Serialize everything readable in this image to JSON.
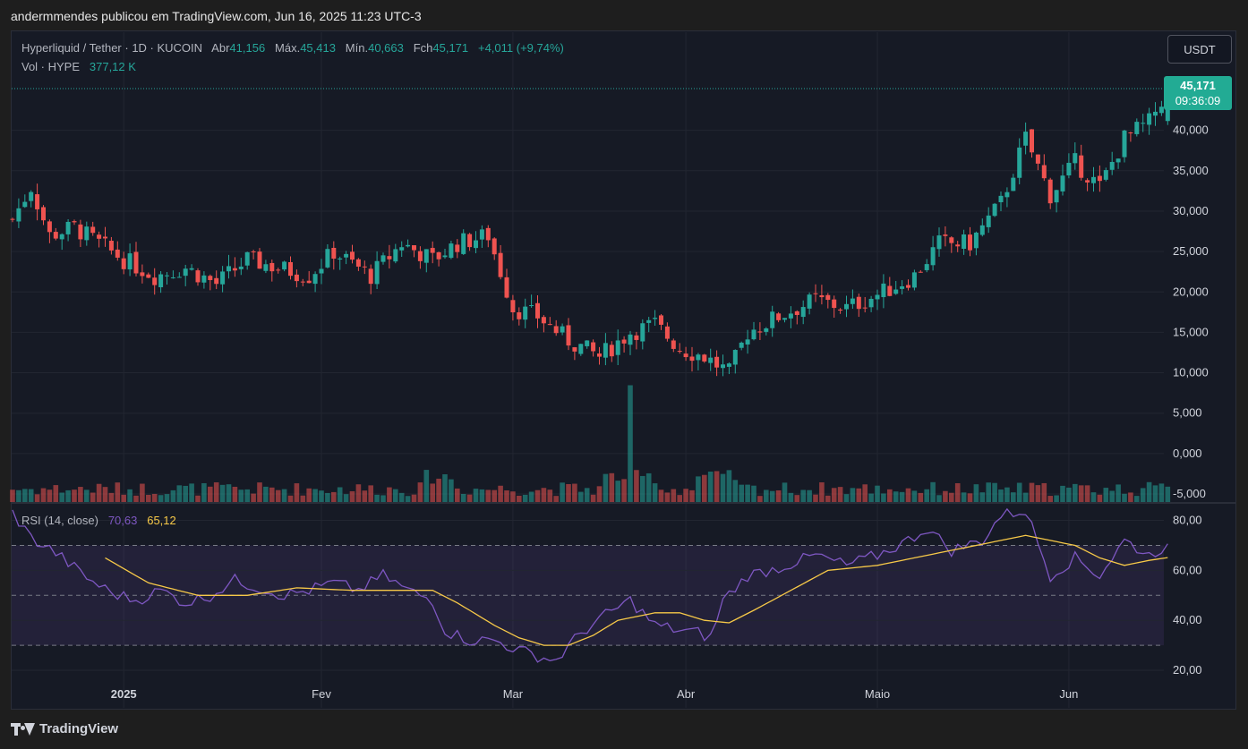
{
  "header": {
    "published": "andermmendes publicou em TradingView.com, Jun 16, 2025 11:23 UTC-3"
  },
  "legend": {
    "symbol": "Hyperliquid / Tether · 1D · KUCOIN",
    "open_label": "Abr",
    "open": "41,156",
    "high_label": "Máx.",
    "high": "45,413",
    "low_label": "Mín.",
    "low": "40,663",
    "close_label": "Fch",
    "close": "45,171",
    "change": "+4,011 (+9,74%)",
    "vol_label": "Vol · HYPE",
    "vol": "377,12 K",
    "rsi_label": "RSI (14, close)",
    "rsi": "70,63",
    "rsi_ma": "65,12"
  },
  "currency_button": "USDT",
  "last_price": {
    "price": "45,171",
    "countdown": "09:36:09"
  },
  "footer": {
    "brand": "TradingView"
  },
  "colors": {
    "up": "#26a69a",
    "down": "#ef5350",
    "rsi": "#7e57c2",
    "rsi_ma": "#f7c948",
    "background": "#161a25"
  },
  "chart_data": [
    {
      "type": "candlestick",
      "title": "Hyperliquid / Tether",
      "price_axis_ticks": [
        "45,171",
        "40,000",
        "35,000",
        "30,000",
        "25,000",
        "20,000",
        "15,000",
        "10,000",
        "5,000",
        "0,000",
        "-5,000"
      ],
      "price_axis_values": [
        40,
        35,
        30,
        25,
        20,
        15,
        10,
        5,
        0,
        -5
      ],
      "ylim": [
        -5,
        45.5
      ],
      "x_ticks": [
        "2025",
        "Fev",
        "Mar",
        "Abr",
        "Maio",
        "Jun"
      ],
      "x_tick_days": [
        18,
        50,
        81,
        109,
        140,
        171
      ],
      "day_range": [
        0,
        187
      ],
      "anchors_close": [
        [
          0,
          29
        ],
        [
          3,
          33
        ],
        [
          6,
          27
        ],
        [
          10,
          28
        ],
        [
          14,
          26
        ],
        [
          18,
          24
        ],
        [
          23,
          22
        ],
        [
          28,
          23
        ],
        [
          33,
          21
        ],
        [
          38,
          24
        ],
        [
          43,
          23
        ],
        [
          48,
          22
        ],
        [
          52,
          25
        ],
        [
          58,
          22
        ],
        [
          63,
          26
        ],
        [
          68,
          24
        ],
        [
          72,
          26
        ],
        [
          77,
          27
        ],
        [
          81,
          18
        ],
        [
          85,
          17
        ],
        [
          90,
          14
        ],
        [
          95,
          12
        ],
        [
          100,
          15
        ],
        [
          104,
          16
        ],
        [
          108,
          13
        ],
        [
          112,
          12
        ],
        [
          116,
          10
        ],
        [
          119,
          15
        ],
        [
          124,
          17
        ],
        [
          130,
          19
        ],
        [
          135,
          18
        ],
        [
          141,
          20
        ],
        [
          146,
          22
        ],
        [
          150,
          26
        ],
        [
          155,
          26
        ],
        [
          160,
          31
        ],
        [
          164,
          39
        ],
        [
          168,
          32
        ],
        [
          172,
          36
        ],
        [
          176,
          33
        ],
        [
          180,
          39
        ],
        [
          184,
          41
        ],
        [
          187,
          45.171
        ]
      ],
      "last": {
        "open": 41.156,
        "high": 45.413,
        "low": 40.663,
        "close": 45.171
      }
    },
    {
      "type": "bar",
      "title": "Vol · HYPE",
      "max_spike_day": 100
    },
    {
      "type": "line",
      "title": "RSI (14, close)",
      "ylim": [
        15,
        87
      ],
      "axis_ticks": [
        "80,00",
        "60,00",
        "40,00",
        "20,00"
      ],
      "axis_values": [
        80,
        60,
        40,
        20
      ],
      "bands": [
        30,
        50,
        70
      ],
      "rsi_anchors": [
        [
          0,
          83
        ],
        [
          3,
          73
        ],
        [
          7,
          67
        ],
        [
          12,
          57
        ],
        [
          16,
          51
        ],
        [
          20,
          48
        ],
        [
          24,
          52
        ],
        [
          28,
          47
        ],
        [
          32,
          50
        ],
        [
          36,
          56
        ],
        [
          40,
          53
        ],
        [
          44,
          50
        ],
        [
          48,
          52
        ],
        [
          52,
          55
        ],
        [
          56,
          52
        ],
        [
          60,
          58
        ],
        [
          64,
          52
        ],
        [
          68,
          48
        ],
        [
          70,
          36
        ],
        [
          74,
          32
        ],
        [
          78,
          32
        ],
        [
          82,
          28
        ],
        [
          86,
          25
        ],
        [
          88,
          24
        ],
        [
          92,
          35
        ],
        [
          96,
          42
        ],
        [
          100,
          48
        ],
        [
          104,
          38
        ],
        [
          108,
          36
        ],
        [
          111,
          35
        ],
        [
          113,
          33
        ],
        [
          115,
          48
        ],
        [
          119,
          58
        ],
        [
          124,
          61
        ],
        [
          130,
          66
        ],
        [
          135,
          62
        ],
        [
          140,
          66
        ],
        [
          145,
          72
        ],
        [
          148,
          77
        ],
        [
          152,
          68
        ],
        [
          157,
          72
        ],
        [
          160,
          82
        ],
        [
          164,
          84
        ],
        [
          168,
          58
        ],
        [
          172,
          65
        ],
        [
          176,
          58
        ],
        [
          180,
          72
        ],
        [
          184,
          66
        ],
        [
          187,
          70.63
        ]
      ],
      "ma_anchors": [
        [
          15,
          65
        ],
        [
          22,
          55
        ],
        [
          30,
          50
        ],
        [
          38,
          50
        ],
        [
          46,
          53
        ],
        [
          55,
          52
        ],
        [
          62,
          52
        ],
        [
          68,
          52
        ],
        [
          72,
          47
        ],
        [
          78,
          38
        ],
        [
          82,
          33
        ],
        [
          86,
          30
        ],
        [
          90,
          30
        ],
        [
          94,
          34
        ],
        [
          98,
          40
        ],
        [
          104,
          43
        ],
        [
          108,
          43
        ],
        [
          112,
          40
        ],
        [
          116,
          39
        ],
        [
          120,
          44
        ],
        [
          126,
          52
        ],
        [
          132,
          60
        ],
        [
          140,
          62
        ],
        [
          146,
          65
        ],
        [
          152,
          68
        ],
        [
          156,
          70
        ],
        [
          160,
          72
        ],
        [
          164,
          74
        ],
        [
          168,
          72
        ],
        [
          172,
          70
        ],
        [
          176,
          65
        ],
        [
          180,
          62
        ],
        [
          184,
          64
        ],
        [
          187,
          65.12
        ]
      ]
    }
  ]
}
